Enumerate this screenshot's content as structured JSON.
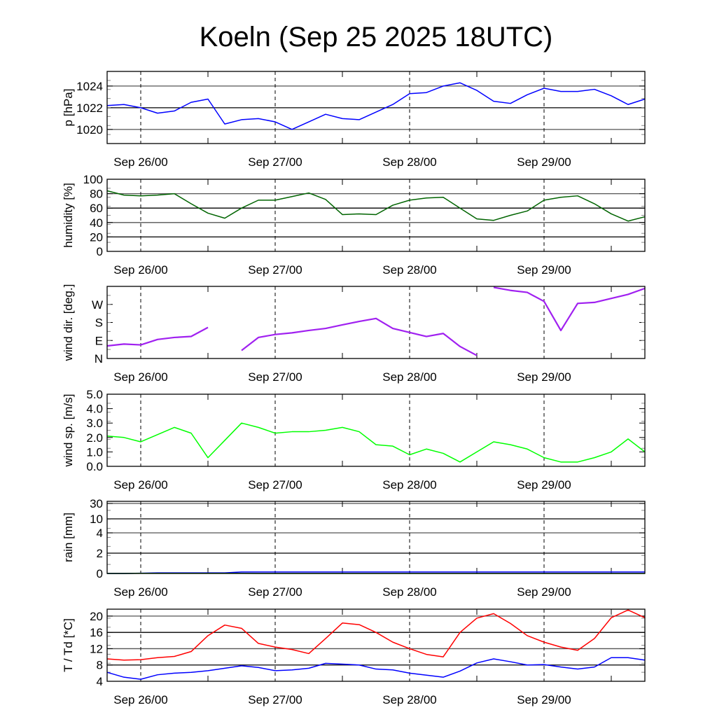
{
  "chart_data": {
    "type": "line",
    "title": "Koeln (Sep 25 2025 18UTC)",
    "x_unit": "hours since Sep 25 18UTC",
    "x": [
      0,
      3,
      6,
      9,
      12,
      15,
      18,
      21,
      24,
      27,
      30,
      33,
      36,
      39,
      42,
      45,
      48,
      51,
      54,
      57,
      60,
      63,
      66,
      69,
      72,
      75,
      78,
      81,
      84,
      87,
      90,
      93,
      96
    ],
    "xlim": [
      0,
      96
    ],
    "x_ticks": [
      {
        "label": "Sep 26/00",
        "value": 6
      },
      {
        "label": "Sep 27/00",
        "value": 30
      },
      {
        "label": "Sep 28/00",
        "value": 54
      },
      {
        "label": "Sep 29/00",
        "value": 78
      }
    ],
    "panels": [
      {
        "id": "pressure",
        "ylabel": "p [hPa]",
        "ylim": [
          1018.7,
          1025.35
        ],
        "yticks": [
          {
            "label": "1020",
            "value": 1020
          },
          {
            "label": "1022",
            "value": 1022
          },
          {
            "label": "1024",
            "value": 1024
          }
        ],
        "series": [
          {
            "name": "pressure",
            "color": "#0000ff",
            "values": [
              1022.2,
              1022.3,
              1022.0,
              1021.5,
              1021.7,
              1022.5,
              1022.8,
              1020.5,
              1020.9,
              1021.0,
              1020.7,
              1020.0,
              1020.7,
              1021.4,
              1021.0,
              1020.9,
              1021.6,
              1022.3,
              1023.3,
              1023.4,
              1024.0,
              1024.3,
              1023.6,
              1022.6,
              1022.4,
              1023.2,
              1023.8,
              1023.5,
              1023.5,
              1023.7,
              1023.1,
              1022.3,
              1022.8
            ]
          }
        ]
      },
      {
        "id": "humidity",
        "ylabel": "humidity [%]",
        "ylim": [
          0,
          100
        ],
        "yticks": [
          {
            "label": "0",
            "value": 0
          },
          {
            "label": "20",
            "value": 20
          },
          {
            "label": "40",
            "value": 40
          },
          {
            "label": "60",
            "value": 60
          },
          {
            "label": "80",
            "value": 80
          },
          {
            "label": "100",
            "value": 100
          }
        ],
        "series": [
          {
            "name": "humidity",
            "color": "#006400",
            "values": [
              84,
              78,
              77,
              78,
              80,
              66,
              53,
              46,
              60,
              71,
              71,
              76,
              81,
              72,
              51,
              52,
              51,
              64,
              71,
              74,
              75,
              60,
              45,
              43,
              50,
              56,
              71,
              75,
              77,
              66,
              52,
              42,
              48
            ]
          }
        ]
      },
      {
        "id": "wind_direction",
        "ylabel": "wind dir. [deg.]",
        "ylim": [
          0,
          360
        ],
        "yticks": [
          {
            "label": "N",
            "value": 0
          },
          {
            "label": "E",
            "value": 90
          },
          {
            "label": "S",
            "value": 180
          },
          {
            "label": "W",
            "value": 270
          }
        ],
        "series": [
          {
            "name": "wind direction",
            "color": "#a020f0",
            "values": [
              63,
              72,
              68,
              95,
              105,
              110,
              155,
              340,
              40,
              105,
              120,
              128,
              140,
              150,
              168,
              185,
              200,
              150,
              130,
              110,
              125,
              60,
              15,
              355,
              340,
              330,
              285,
              140,
              275,
              280,
              300,
              320,
              350
            ]
          }
        ]
      },
      {
        "id": "wind_speed",
        "ylabel": "wind sp. [m/s]",
        "ylim": [
          0,
          5
        ],
        "yticks": [
          {
            "label": "0.0",
            "value": 0
          },
          {
            "label": "1.0",
            "value": 1
          },
          {
            "label": "2.0",
            "value": 2
          },
          {
            "label": "3.0",
            "value": 3
          },
          {
            "label": "4.0",
            "value": 4
          },
          {
            "label": "5.0",
            "value": 5
          }
        ],
        "series": [
          {
            "name": "wind speed",
            "color": "#00ff00",
            "values": [
              2.1,
              2.0,
              1.7,
              2.2,
              2.7,
              2.3,
              0.6,
              1.8,
              3.0,
              2.7,
              2.3,
              2.4,
              2.4,
              2.5,
              2.7,
              2.4,
              1.5,
              1.4,
              0.8,
              1.2,
              0.9,
              0.3,
              1.0,
              1.7,
              1.5,
              1.2,
              0.6,
              0.3,
              0.3,
              0.6,
              1.0,
              1.9,
              1.0
            ]
          }
        ]
      },
      {
        "id": "rain",
        "ylabel": "rain [mm]",
        "ylim": [
          0,
          30
        ],
        "yticks": [
          {
            "label": "0",
            "value": 0
          },
          {
            "label": "2",
            "value": 2
          },
          {
            "label": "4",
            "value": 4
          },
          {
            "label": "10",
            "value": 10
          },
          {
            "label": "30",
            "value": 30
          }
        ],
        "series": [
          {
            "name": "rain accumulated",
            "color": "#0000ff",
            "values": [
              0,
              0,
              0.03,
              0.06,
              0.06,
              0.06,
              0.06,
              0.06,
              0.15,
              0.15,
              0.15,
              0.15,
              0.15,
              0.15,
              0.15,
              0.15,
              0.15,
              0.15,
              0.15,
              0.15,
              0.15,
              0.15,
              0.15,
              0.15,
              0.15,
              0.15,
              0.15,
              0.15,
              0.15,
              0.15,
              0.15,
              0.15,
              0.15
            ]
          },
          {
            "name": "rain",
            "color": "#008000",
            "values": [
              0,
              0,
              0.02,
              0.02,
              0.02,
              0.02,
              0.02,
              0.02,
              0.02,
              0,
              0,
              0,
              0,
              0,
              0,
              0,
              0,
              0,
              0,
              0,
              0,
              0,
              0,
              0,
              0,
              0,
              0,
              0,
              0,
              0,
              0,
              0,
              0
            ]
          }
        ]
      },
      {
        "id": "temperature",
        "ylabel": "T / Td [*C]",
        "ylim": [
          4,
          21.7
        ],
        "yticks": [
          {
            "label": "4",
            "value": 4
          },
          {
            "label": "8",
            "value": 8
          },
          {
            "label": "12",
            "value": 12
          },
          {
            "label": "16",
            "value": 16
          },
          {
            "label": "20",
            "value": 20
          }
        ],
        "series": [
          {
            "name": "T",
            "color": "#ff0000",
            "values": [
              9.5,
              9.2,
              9.3,
              9.8,
              10.1,
              11.3,
              15.2,
              17.8,
              17.0,
              13.3,
              12.4,
              11.8,
              10.8,
              14.5,
              18.3,
              17.9,
              16.0,
              13.6,
              12.0,
              10.6,
              10.0,
              16.0,
              19.5,
              20.6,
              18.2,
              15.2,
              13.6,
              12.4,
              11.6,
              14.5,
              19.6,
              21.5,
              19.6
            ]
          },
          {
            "name": "Td",
            "color": "#0000ff",
            "values": [
              6.2,
              5.0,
              4.5,
              5.6,
              6.0,
              6.2,
              6.6,
              7.2,
              7.8,
              7.4,
              6.6,
              6.8,
              7.2,
              8.4,
              8.2,
              8.0,
              7.0,
              6.8,
              6.0,
              5.5,
              5.0,
              6.5,
              8.5,
              9.5,
              8.8,
              8.0,
              8.1,
              7.5,
              7.0,
              7.5,
              9.8,
              9.8,
              9.2
            ]
          }
        ]
      }
    ]
  }
}
